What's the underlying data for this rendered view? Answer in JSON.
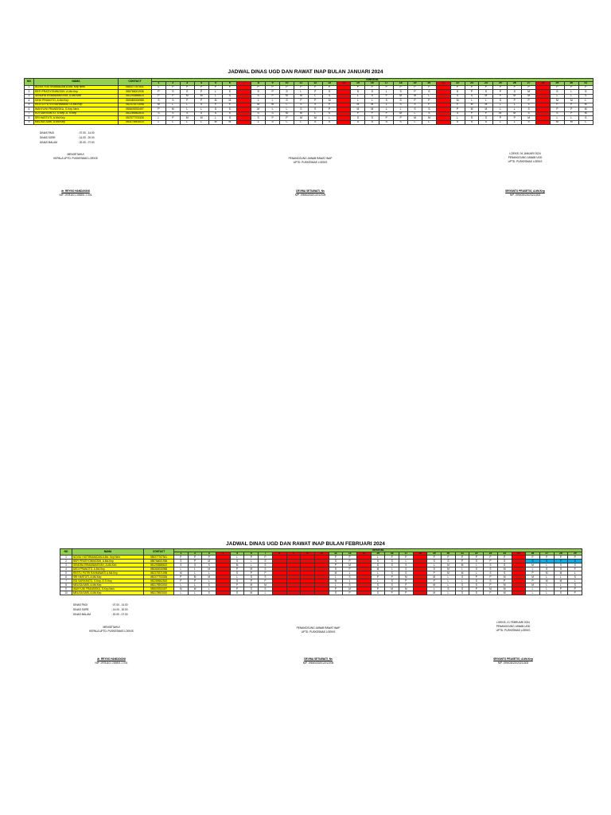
{
  "jan": {
    "title": "JADWAL DINAS UGD DAN RAWAT INAP BULAN JANUARI 2024",
    "hdr_no": "NO",
    "hdr_name": "NAMA",
    "hdr_contact": "CONTACT",
    "hdr_tanggal": "TANGGAL",
    "days": [
      "1",
      "2",
      "3",
      "4",
      "5",
      "6",
      "7",
      "8",
      "9",
      "10",
      "11",
      "12",
      "13",
      "14",
      "15",
      "16",
      "17",
      "18",
      "19",
      "20",
      "21",
      "22",
      "23",
      "24",
      "25",
      "26",
      "27",
      "28",
      "29",
      "30",
      "31"
    ],
    "red_days": [
      7,
      14,
      21,
      28
    ],
    "rows": [
      {
        "no": "1",
        "name": "NOVIA YUSTIRAMADAN A.Md. Kep Ners",
        "contact": "085377767541",
        "cells": [
          "L",
          "P",
          "P",
          "P",
          "P",
          "P",
          "",
          "P",
          "P",
          "P",
          "P",
          "P",
          "P",
          "",
          "P",
          "P",
          "P",
          "P",
          "P",
          "P",
          "",
          "P",
          "P",
          "P",
          "P",
          "P",
          "P",
          "",
          "P",
          "P",
          "P"
        ]
      },
      {
        "no": "2",
        "name": "REFI PRATIYONINGSIH, A.Md.Kep",
        "contact": "085766001936",
        "cells": [
          "P",
          "S",
          "S",
          "P",
          "L",
          "S",
          "",
          "S",
          "P",
          "S",
          "L",
          "P",
          "S",
          "",
          "S",
          "S",
          "L",
          "S",
          "P",
          "S",
          "",
          "S",
          "P",
          "S",
          "P",
          "S",
          "M",
          "",
          "S",
          "L",
          "S"
        ]
      },
      {
        "no": "3",
        "name": "SENDRA ERMAWANSYAH, A.Md.Keb",
        "contact": "081293588623",
        "cells": [
          "P",
          "P",
          "M",
          "M",
          "L",
          "S",
          "",
          "S",
          "P",
          "M",
          "M",
          "L",
          "S",
          "",
          "L",
          "S",
          "P",
          "M",
          "M",
          "L",
          "",
          "S",
          "S",
          "M",
          "P",
          "M",
          "M",
          "",
          "L",
          "L",
          "S"
        ]
      },
      {
        "no": "4",
        "name": "DEDI PRANOTO, A.Md.Kep",
        "contact": "085380006988",
        "cells": [
          "S",
          "S",
          "P",
          "P",
          "M",
          "M",
          "",
          "L",
          "L",
          "S",
          "P",
          "P",
          "M",
          "",
          "L",
          "L",
          "S",
          "S",
          "P",
          "P",
          "",
          "M",
          "L",
          "L",
          "S",
          "P",
          "P",
          "",
          "M",
          "M",
          "L"
        ]
      },
      {
        "no": "5",
        "name": "RESTU PUTRI RAHMAWATI A.Md.Kep",
        "contact": "082375371098",
        "cells": [
          "M",
          "L",
          "L",
          "S",
          "P",
          "P",
          "",
          "M",
          "M",
          "L",
          "S",
          "S",
          "P",
          "",
          "M",
          "M",
          "L",
          "S",
          "S",
          "P",
          "",
          "P",
          "M",
          "M",
          "L",
          "L",
          "S",
          "",
          "P",
          "P",
          "M"
        ]
      },
      {
        "no": "6",
        "name": "WAHYUNI FRANSISKA, S.Kep.Ners",
        "contact": "085609253497",
        "cells": [
          "P",
          "M",
          "L",
          "L",
          "S",
          "S",
          "",
          "M",
          "L",
          "L",
          "S",
          "S",
          "P",
          "",
          "M",
          "M",
          "L",
          "L",
          "S",
          "S",
          "",
          "P",
          "M",
          "M",
          "L",
          "L",
          "S",
          "",
          "P",
          "P",
          "M"
        ]
      },
      {
        "no": "7",
        "name": "EDI SARIYANTO, S.Kep.,S.Tr.Kep",
        "contact": "082289562815",
        "cells": [
          "S",
          "S",
          "S",
          "S",
          "S",
          "S",
          "",
          "S",
          "S",
          "M",
          "M",
          "L",
          "S",
          "",
          "P",
          "P",
          "P",
          "M",
          "L",
          "S",
          "",
          "S",
          "P",
          "P",
          "M",
          "M",
          "S",
          "",
          "S",
          "P",
          "M"
        ]
      },
      {
        "no": "8",
        "name": "SRI HASTUTI, A.Md.Kep",
        "contact": "082377703326",
        "cells": [
          "L",
          "P",
          "M",
          "M",
          "L",
          "S",
          "",
          "S",
          "P",
          "P",
          "M",
          "M",
          "L",
          "",
          "S",
          "S",
          "P",
          "P",
          "M",
          "M",
          "",
          "L",
          "S",
          "S",
          "P",
          "P",
          "M",
          "",
          "L",
          "L",
          "S"
        ]
      },
      {
        "no": "9",
        "name": "MELISA SARI, A.Md.Kep",
        "contact": "083175903010",
        "cells": [
          "L",
          "L",
          "L",
          "L",
          "M",
          "M",
          "",
          "L",
          "S",
          "L",
          "L",
          "S",
          "S",
          "",
          "S",
          "S",
          "S",
          "S",
          "L",
          "L",
          "",
          "S",
          "S",
          "S",
          "L",
          "L",
          "S",
          "",
          "M",
          "M",
          "L"
        ]
      }
    ],
    "shifts": [
      {
        "label": "DINAS PAGI",
        "time": ": 07.00 - 14.00"
      },
      {
        "label": "DINAS SORE",
        "time": ": 14.00 - 20.00"
      },
      {
        "label": "DINAS MALAM",
        "time": ": 20.00 - 07.00"
      }
    ],
    "sig_left": {
      "l1": "MENGETAHUI",
      "l2": "KEPALA UPTD. PUSKESMAS LOEKIS",
      "name": "dr. REYNO HANDAYANI",
      "nip": "NIP. 19781101 200801 2 001"
    },
    "sig_mid": {
      "l1": "PENANGGUNG JAWAB RAWAT INAP",
      "l2": "UPTD. PUSKESMAS LOEKIS",
      "name": "DEVINA SETIAWATI, Ns",
      "nip": "NIP. 198404302012012005"
    },
    "sig_right": {
      "l0": "LOEKIS, 04 JANUARI 2024",
      "l1": "PENANGGUNG JAWAB UGD",
      "l2": "UPTD. PUSKESMAS LOEKIS",
      "name": "SRIYANTO PRASETIO, A.Md.Kep",
      "nip": "NIP. 199403022023211003"
    }
  },
  "feb": {
    "title": "JADWAL DINAS UGD DAN RAWAT INAP BULAN FEBRUARI 2024",
    "hdr_no": "NO",
    "hdr_name": "NAMA",
    "hdr_contact": "CONTACT",
    "hdr_tanggal": "TANGGAL",
    "days": [
      "1",
      "2",
      "3",
      "4",
      "5",
      "6",
      "7",
      "8",
      "9",
      "10",
      "11",
      "12",
      "13",
      "14",
      "15",
      "16",
      "17",
      "18",
      "19",
      "20",
      "21",
      "22",
      "23",
      "24",
      "25",
      "26",
      "27",
      "28",
      "29"
    ],
    "red_days": [
      4,
      8,
      9,
      10,
      11,
      14,
      18,
      25
    ],
    "rows": [
      {
        "no": "1",
        "name": "NOVIA YUSTIRAMADAN A.Md. Kep Ners",
        "contact": "085377767541",
        "cells": [
          "P",
          "P",
          "P",
          "",
          "L",
          "P",
          "P",
          "",
          "",
          "",
          "",
          "P",
          "P",
          "",
          "L",
          "P",
          "P",
          "",
          "P",
          "P",
          "P",
          "P",
          "P",
          "P",
          "",
          "P",
          "P",
          "P",
          "P"
        ]
      },
      {
        "no": "2",
        "name": "REFI PRATIYONINGSIH, A.Md.Kep",
        "contact": "085766001936",
        "cells": [
          "S",
          "P",
          "M",
          "",
          "S",
          "L",
          "S",
          "",
          "",
          "",
          "",
          "S",
          "P",
          "",
          "S",
          "S",
          "L",
          "",
          "S",
          "S",
          "P",
          "S",
          "P",
          "S",
          "",
          "S",
          "S",
          "P",
          "S"
        ]
      },
      {
        "no": "3",
        "name": "SENDRA ERMAWANSYAH, A.Md.Keb",
        "contact": "081293588623",
        "cells": [
          "S",
          "S",
          "S",
          "",
          "M",
          "L",
          "S",
          "",
          "",
          "",
          "",
          "P",
          "M",
          "",
          "S",
          "S",
          "S",
          "",
          "L",
          "M",
          "M",
          "L",
          "S",
          "S",
          "",
          "M",
          "L",
          "S",
          "S"
        ]
      },
      {
        "no": "4",
        "name": "DEDI PRANOTO, A.Md.Kep",
        "contact": "085380006988",
        "cells": [
          "L",
          "L",
          "M",
          "",
          "P",
          "M",
          "S",
          "",
          "",
          "",
          "",
          "S",
          "P",
          "",
          "M",
          "L",
          "S",
          "",
          "S",
          "M",
          "L",
          "S",
          "S",
          "M",
          "",
          "L",
          "S",
          "S",
          "P"
        ]
      },
      {
        "no": "5",
        "name": "RESTU PUTRI RAHMAWATI A.Md.Kep",
        "contact": "082375371098",
        "cells": [
          "M",
          "L",
          "L",
          "",
          "S",
          "P",
          "P",
          "",
          "",
          "",
          "",
          "M",
          "L",
          "",
          "L",
          "S",
          "S",
          "",
          "P",
          "M",
          "M",
          "L",
          "S",
          "S",
          "",
          "P",
          "M",
          "M",
          "L"
        ]
      },
      {
        "no": "6",
        "name": "SRI HASTUTI, A.Md.Kep",
        "contact": "082377703326",
        "cells": [
          "P",
          "M",
          "M",
          "",
          "L",
          "S",
          "S",
          "",
          "",
          "",
          "",
          "L",
          "S",
          "",
          "P",
          "P",
          "M",
          "",
          "M",
          "L",
          "S",
          "P",
          "P",
          "M",
          "",
          "M",
          "L",
          "L",
          "S"
        ]
      },
      {
        "no": "7",
        "name": "EDI SARIYANTO, S.Kep.,S.Tr.Kep",
        "contact": "082289562815",
        "cells": [
          "P",
          "P",
          "L",
          "",
          "S",
          "P",
          "P",
          "",
          "",
          "",
          "",
          "M",
          "L",
          "",
          "L",
          "S",
          "P",
          "",
          "P",
          "L",
          "L",
          "S",
          "S",
          "P",
          "",
          "P",
          "M",
          "M",
          "L"
        ]
      },
      {
        "no": "8",
        "name": "MELISA SARI, A.Md.Kep",
        "contact": "083175903010",
        "cells": [
          "L",
          "L",
          "S",
          "",
          "P",
          "M",
          "M",
          "",
          "",
          "",
          "",
          "L",
          "S",
          "",
          "S",
          "S",
          "P",
          "",
          "M",
          "L",
          "S",
          "S",
          "P",
          "M",
          "",
          "M",
          "L",
          "L",
          "S"
        ]
      },
      {
        "no": "9",
        "name": "WAHYUNI FRANSISKA, S.Kep.Ners",
        "contact": "085609253497",
        "cells": [
          "M",
          "M",
          "L",
          "",
          "P",
          "S",
          "S",
          "",
          "",
          "",
          "",
          "P",
          "M",
          "",
          "P",
          "M",
          "M",
          "",
          "L",
          "S",
          "S",
          "P",
          "M",
          "M",
          "",
          "L",
          "L",
          "P",
          "P"
        ]
      },
      {
        "no": "10",
        "name": "MELISA SARI, A.Md.Kep",
        "contact": "083175903010",
        "cells": [
          "L",
          "L",
          "S",
          "",
          "S",
          "M",
          "L",
          "",
          "",
          "",
          "",
          "S",
          "P",
          "",
          "S",
          "P",
          "P",
          "",
          "M",
          "L",
          "S",
          "S",
          "P",
          "M",
          "",
          "L",
          "L",
          "S",
          "P"
        ]
      }
    ],
    "shifts": [
      {
        "label": "DINAS PAGI",
        "time": ": 07.00 - 14.00"
      },
      {
        "label": "DINAS SORE",
        "time": ": 14.00 - 20.00"
      },
      {
        "label": "DINAS MALAM",
        "time": ": 20.00 - 07.00"
      }
    ],
    "sig_left": {
      "l1": "MENGETAHUI",
      "l2": "KEPALA UPTD. PUSKESMAS LOEKIS",
      "name": "dr. REYNO HANDAYANI",
      "nip": "NIP. 19781101 200801 2 001"
    },
    "sig_mid": {
      "l1": "PENANGGUNG JAWAB RAWAT INAP",
      "l2": "UPTD. PUSKESMAS LOEKIS",
      "name": "DEVINA SETIAWATI, Ns",
      "nip": "NIP. 198404302012012005"
    },
    "sig_right": {
      "l0": "LOEKIS, 01 FEBRUARI 2024",
      "l1": "PENANGGUNG JAWAB UGD",
      "l2": "UPTD. PUSKESMAS LOEKIS",
      "name": "SRIYANTO PRASETIO, A.Md.Kep",
      "nip": "NIP. 199403022023211003"
    }
  },
  "colors": {
    "header": "#92d050",
    "name_bg": "#ffff00",
    "weekend": "#ff0000",
    "highlight": "#00b0f0"
  }
}
